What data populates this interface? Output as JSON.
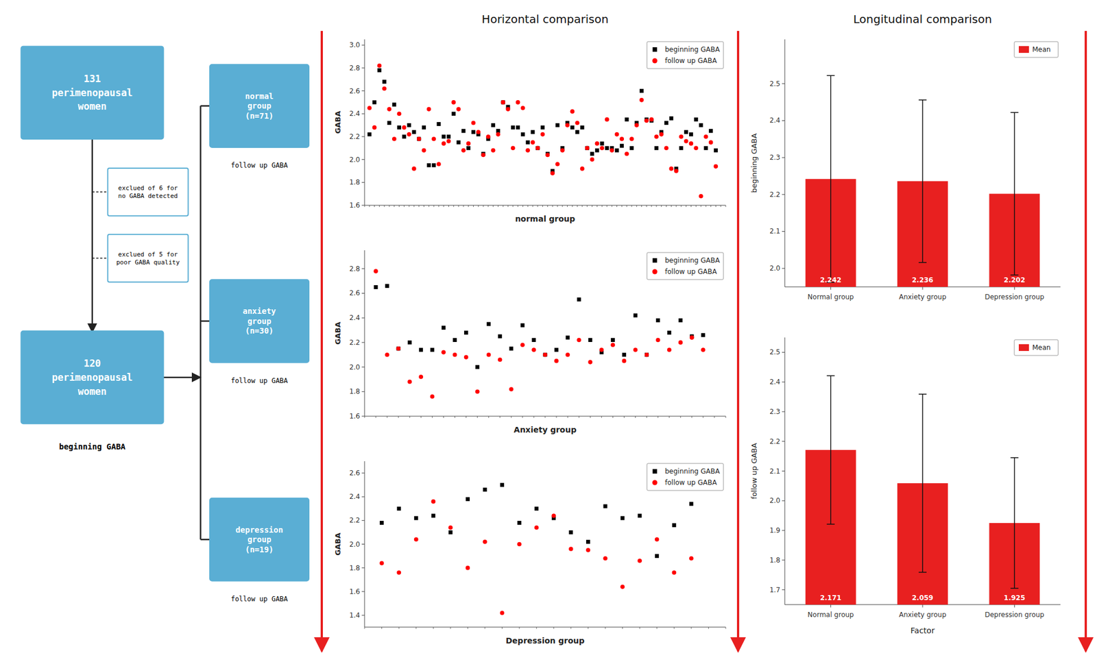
{
  "chart_data": [
    {
      "type": "flowchart",
      "color": "#5aaed4",
      "annotations": [
        "131\nperimenopausal\nwomen",
        "exclued of 6 for\nno GABA detected",
        "exclued of 5 for\npoor GABA quality",
        "120\nperimenopausal\nwomen",
        "beginning GABA",
        "normal\ngroup\n(n=71)",
        "anxiety\ngroup\n(n=30)",
        "depression\ngroup\n(n=19)",
        "follow up GABA",
        "follow up GABA",
        "follow up GABA"
      ]
    },
    {
      "type": "scatter",
      "title": "Horizontal comparison",
      "xlabel": "normal group",
      "ylabel": "GABA",
      "x": [
        1,
        2,
        3,
        4,
        5,
        6,
        7,
        8,
        9,
        10,
        11,
        12,
        13,
        14,
        15,
        16,
        17,
        18,
        19,
        20,
        21,
        22,
        23,
        24,
        25,
        26,
        27,
        28,
        29,
        30,
        31,
        32,
        33,
        34,
        35,
        36,
        37,
        38,
        39,
        40,
        41,
        42,
        43,
        44,
        45,
        46,
        47,
        48,
        49,
        50,
        51,
        52,
        53,
        54,
        55,
        56,
        57,
        58,
        59,
        60,
        61,
        62,
        63,
        64,
        65,
        66,
        67,
        68,
        69,
        70,
        71
      ],
      "series": [
        {
          "name": "beginning GABA",
          "color": "black",
          "marker": "square",
          "values": [
            2.22,
            2.5,
            2.78,
            2.68,
            2.32,
            2.48,
            2.28,
            2.2,
            2.3,
            2.24,
            2.18,
            2.28,
            1.95,
            1.95,
            2.31,
            2.2,
            2.2,
            2.4,
            2.15,
            2.25,
            2.1,
            2.24,
            2.22,
            2.05,
            2.18,
            2.3,
            2.25,
            2.5,
            2.46,
            2.28,
            2.28,
            2.22,
            2.15,
            2.24,
            2.1,
            2.28,
            2.05,
            1.9,
            2.3,
            2.1,
            2.32,
            2.28,
            2.24,
            2.28,
            2.1,
            2.05,
            2.08,
            2.14,
            2.1,
            2.1,
            2.08,
            2.12,
            2.35,
            2.1,
            2.32,
            2.6,
            2.35,
            2.34,
            2.1,
            2.24,
            2.32,
            2.36,
            1.92,
            2.1,
            2.24,
            2.22,
            2.35,
            2.3,
            2.1,
            2.25,
            2.08
          ]
        },
        {
          "name": "follow up GABA",
          "color": "red",
          "marker": "circle",
          "values": [
            2.45,
            2.28,
            2.82,
            2.62,
            2.44,
            2.18,
            2.4,
            2.28,
            2.22,
            1.92,
            2.18,
            2.08,
            2.44,
            2.18,
            1.96,
            2.14,
            2.16,
            2.5,
            2.44,
            2.08,
            2.14,
            2.32,
            2.24,
            2.04,
            2.2,
            2.08,
            2.22,
            2.5,
            2.44,
            2.1,
            2.5,
            2.45,
            2.08,
            2.15,
            2.1,
            2.22,
            2.04,
            1.88,
            1.96,
            2.08,
            2.3,
            2.42,
            2.32,
            1.92,
            2.1,
            2.0,
            2.14,
            2.1,
            2.35,
            2.08,
            2.22,
            2.18,
            2.05,
            2.18,
            2.3,
            2.52,
            2.34,
            2.35,
            2.2,
            2.22,
            2.1,
            1.92,
            1.9,
            2.2,
            2.16,
            2.14,
            2.1,
            1.68,
            2.2,
            2.15,
            1.94
          ]
        }
      ],
      "xlim": [
        0,
        73
      ],
      "xticks": [
        0,
        1,
        2,
        3,
        4,
        5,
        6,
        7,
        8,
        9,
        10,
        11,
        12,
        13,
        14,
        15,
        16,
        17,
        18,
        19,
        20,
        21,
        22,
        23,
        24,
        25,
        26,
        27,
        28,
        29,
        30,
        31,
        32,
        33,
        34,
        35,
        36,
        37,
        38,
        39,
        40,
        41,
        42,
        43,
        44,
        45,
        46,
        47,
        48,
        49,
        50,
        51,
        52,
        53,
        54,
        55,
        56,
        57,
        58,
        59,
        60,
        61,
        62,
        63,
        64,
        65,
        66,
        67,
        68,
        69,
        70,
        71,
        72,
        73
      ],
      "ylim": [
        1.6,
        3.05
      ],
      "yticks": [
        1.6,
        1.8,
        {
          "value": 2,
          "label": "2.0"
        },
        2.2,
        2.4,
        2.6,
        2.8,
        {
          "value": 3,
          "label": "3.0"
        }
      ],
      "legend": "upper right",
      "tick_labels": "y"
    },
    {
      "type": "scatter",
      "xlabel": "Anxiety group",
      "ylabel": "GABA",
      "x": [
        1,
        2,
        3,
        4,
        5,
        6,
        7,
        8,
        9,
        10,
        11,
        12,
        13,
        14,
        15,
        16,
        17,
        18,
        19,
        20,
        21,
        22,
        23,
        24,
        25,
        26,
        27,
        28,
        29,
        30
      ],
      "series": [
        {
          "name": "beginning GABA",
          "color": "black",
          "marker": "square",
          "values": [
            2.65,
            2.66,
            2.15,
            2.2,
            2.14,
            2.14,
            2.32,
            2.22,
            2.28,
            2.0,
            2.35,
            2.25,
            2.15,
            2.34,
            2.22,
            2.1,
            2.14,
            2.24,
            2.55,
            2.22,
            2.12,
            2.22,
            2.1,
            2.42,
            2.1,
            2.38,
            2.28,
            2.38,
            2.25,
            2.26
          ]
        },
        {
          "name": "follow up GABA",
          "color": "red",
          "marker": "circle",
          "values": [
            2.78,
            2.1,
            2.15,
            1.88,
            1.92,
            1.76,
            2.12,
            2.1,
            2.08,
            1.8,
            2.1,
            2.06,
            1.82,
            2.18,
            2.14,
            2.1,
            2.05,
            2.1,
            2.22,
            2.04,
            2.14,
            2.18,
            2.05,
            2.14,
            2.1,
            2.22,
            2.14,
            2.2,
            2.24,
            2.14
          ]
        }
      ],
      "xlim": [
        0,
        32
      ],
      "xticks": [
        0,
        1,
        2,
        3,
        4,
        5,
        6,
        7,
        8,
        9,
        10,
        11,
        12,
        13,
        14,
        15,
        16,
        17,
        18,
        19,
        20,
        21,
        22,
        23,
        24,
        25,
        26,
        27,
        28,
        29,
        30,
        31,
        32
      ],
      "ylim": [
        1.6,
        2.95
      ],
      "yticks": [
        1.6,
        1.8,
        {
          "value": 2,
          "label": "2.0"
        },
        2.2,
        2.4,
        2.6,
        2.8
      ],
      "legend": "upper right",
      "tick_labels": "y"
    },
    {
      "type": "scatter",
      "xlabel": "Depression group",
      "ylabel": "GABA",
      "x": [
        1,
        2,
        3,
        4,
        5,
        6,
        7,
        8,
        9,
        10,
        11,
        12,
        13,
        14,
        15,
        16,
        17,
        18,
        19
      ],
      "series": [
        {
          "name": "beginning GABA",
          "color": "black",
          "marker": "square",
          "values": [
            2.18,
            2.3,
            2.22,
            2.24,
            2.1,
            2.38,
            2.46,
            2.5,
            2.18,
            2.3,
            2.22,
            2.1,
            2.02,
            2.32,
            2.22,
            2.24,
            1.9,
            2.16,
            2.34
          ]
        },
        {
          "name": "follow up GABA",
          "color": "red",
          "marker": "circle",
          "values": [
            1.84,
            1.76,
            2.04,
            2.36,
            2.14,
            1.8,
            2.02,
            1.42,
            2.0,
            2.14,
            2.24,
            1.96,
            1.95,
            1.88,
            1.64,
            1.86,
            2.04,
            1.76,
            1.88
          ]
        }
      ],
      "xlim": [
        0,
        21
      ],
      "xticks": [
        0,
        1,
        2,
        3,
        4,
        5,
        6,
        7,
        8,
        9,
        10,
        11,
        12,
        13,
        14,
        15,
        16,
        17,
        18,
        19,
        20,
        21
      ],
      "ylim": [
        1.3,
        2.7
      ],
      "yticks": [
        1.4,
        1.6,
        1.8,
        {
          "value": 2,
          "label": "2.0"
        },
        2.2,
        2.4,
        2.6
      ],
      "legend": "upper right",
      "tick_labels": "y"
    },
    {
      "type": "bar",
      "title": "Longitudinal comparison",
      "ylabel": "beginning GABA",
      "categories": [
        "Normal group",
        "Anxiety group",
        "Depression group"
      ],
      "series": [
        {
          "name": "Mean",
          "color": "#e82020",
          "values": [
            2.242,
            2.236,
            2.202
          ],
          "errors": [
            0.28,
            0.22,
            0.22
          ]
        }
      ],
      "ylim": [
        1.95,
        2.62
      ],
      "yticks": [
        {
          "value": 2,
          "label": "2.0"
        },
        2.1,
        2.2,
        2.3,
        2.4,
        2.5
      ],
      "data_labels": true,
      "legend": "upper right"
    },
    {
      "type": "bar",
      "xlabel": "Factor",
      "ylabel": "follow up GABA",
      "categories": [
        "Normal group",
        "Anxiety group",
        "Depression group"
      ],
      "series": [
        {
          "name": "Mean",
          "color": "#e82020",
          "values": [
            2.171,
            2.059,
            1.925
          ],
          "errors": [
            0.25,
            0.3,
            0.22
          ]
        }
      ],
      "ylim": [
        1.65,
        2.55
      ],
      "yticks": [
        1.7,
        1.8,
        1.9,
        {
          "value": 2,
          "label": "2.0"
        },
        2.1,
        2.2,
        2.3,
        2.4,
        2.5
      ],
      "data_labels": true,
      "legend": "upper right"
    }
  ]
}
